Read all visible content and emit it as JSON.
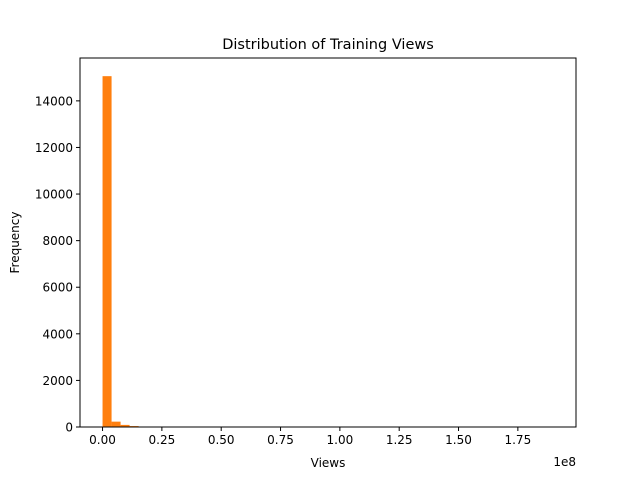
{
  "chart_data": {
    "type": "bar",
    "title": "Distribution of Training Views",
    "xlabel": "Views",
    "ylabel": "Frequency",
    "x_offset_label": "1e8",
    "bar_color": "#ff7f0e",
    "xlim": [
      -0.095,
      1.995
    ],
    "ylim": [
      0,
      15840
    ],
    "x_ticks": [
      0.0,
      0.25,
      0.5,
      0.75,
      1.0,
      1.25,
      1.5,
      1.75
    ],
    "x_tick_labels": [
      "0.00",
      "0.25",
      "0.50",
      "0.75",
      "1.00",
      "1.25",
      "1.50",
      "1.75"
    ],
    "y_ticks": [
      0,
      2000,
      4000,
      6000,
      8000,
      10000,
      12000,
      14000
    ],
    "y_tick_labels": [
      "0",
      "2000",
      "4000",
      "6000",
      "8000",
      "10000",
      "12000",
      "14000"
    ],
    "bins": {
      "start": 0.0,
      "width": 0.038,
      "counts": [
        15060,
        230,
        90,
        40,
        15,
        8,
        5,
        3,
        2,
        2,
        1,
        1,
        0,
        0,
        0,
        0,
        0,
        0,
        0,
        0,
        0,
        0,
        0,
        0,
        0,
        0,
        0,
        0,
        0,
        0,
        0,
        0,
        0,
        0,
        0,
        0,
        0,
        0,
        0,
        0,
        0,
        0,
        0,
        0,
        0,
        0,
        0,
        0,
        0,
        1
      ]
    }
  }
}
